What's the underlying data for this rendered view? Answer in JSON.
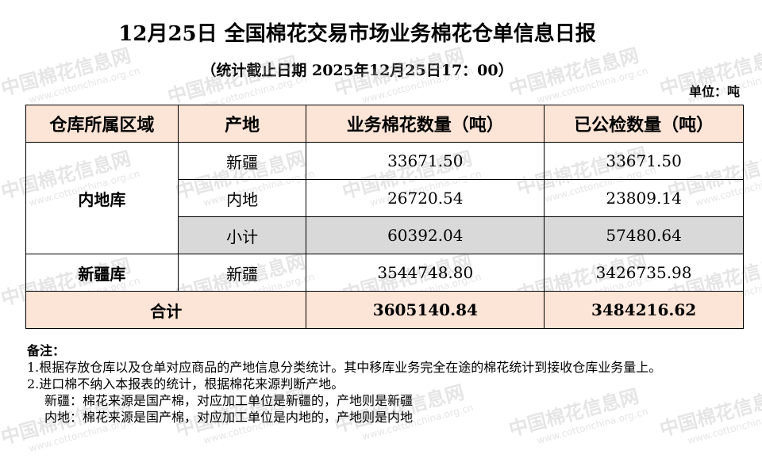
{
  "title": "12月25日 全国棉花交易市场业务棉花仓单信息日报",
  "subtitle": "（统计截止日期 2025年12月25日17：00）",
  "unit": "单位：吨",
  "table": {
    "headers": [
      "仓库所属区域",
      "产地",
      "业务棉花数量（吨）",
      "已公检数量（吨）"
    ],
    "rows": [
      {
        "region": "内地库",
        "origin": "新疆",
        "business": "33671.50",
        "inspected": "33671.50"
      },
      {
        "origin": "内地",
        "business": "26720.54",
        "inspected": "23809.14"
      },
      {
        "origin": "小计",
        "business": "60392.04",
        "inspected": "57480.64"
      },
      {
        "region": "新疆库",
        "origin": "新疆",
        "business": "3544748.80",
        "inspected": "3426735.98"
      }
    ],
    "total": {
      "label": "合计",
      "business": "3605140.84",
      "inspected": "3484216.62"
    }
  },
  "notes": {
    "heading": "备注：",
    "lines": [
      "1.根据存放仓库以及仓单对应商品的产地信息分类统计。其中移库业务完全在途的棉花统计到接收仓库业务量上。",
      "2.进口棉不纳入本报表的统计，根据棉花来源判断产地。",
      "新疆：棉花来源是国产棉，对应加工单位是新疆的，产地则是新疆",
      "内地：棉花来源是国产棉，对应加工单位是内地的，产地则是内地"
    ]
  },
  "watermark": {
    "name": "中国棉花信息网",
    "url": "www.cottonchina.org.cn"
  },
  "colors": {
    "header_bg": "#fce4d6",
    "subtotal_bg": "#d9d9d9"
  }
}
